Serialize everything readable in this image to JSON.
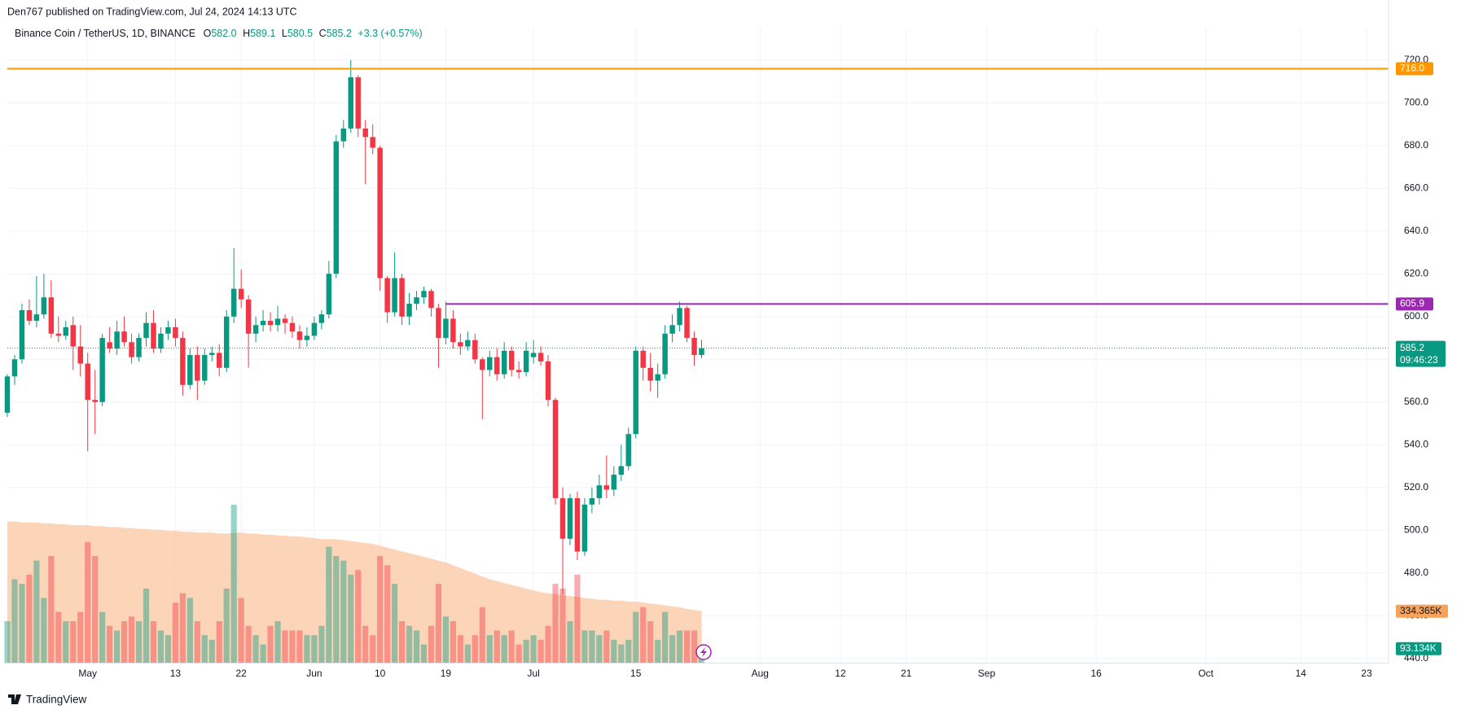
{
  "header": {
    "publisher": "Den767 published on TradingView.com, Jul 24, 2024 14:13 UTC",
    "brand": "TradingView"
  },
  "chart_data": {
    "type": "candlestick",
    "symbol": "Binance Coin / TetherUS, 1D, BINANCE",
    "legend_keys": {
      "open": "O",
      "high": "H",
      "low": "L",
      "close": "C"
    },
    "last_labels": {
      "open": "582.0",
      "high": "589.1",
      "low": "580.5",
      "close": "585.2",
      "change": "+3.3 (+0.57%)"
    },
    "countdown": "09:46:23",
    "x": [
      "2024-04-20",
      "2024-04-21",
      "2024-04-22",
      "2024-04-23",
      "2024-04-24",
      "2024-04-25",
      "2024-04-26",
      "2024-04-27",
      "2024-04-28",
      "2024-04-29",
      "2024-04-30",
      "2024-05-01",
      "2024-05-02",
      "2024-05-03",
      "2024-05-04",
      "2024-05-05",
      "2024-05-06",
      "2024-05-07",
      "2024-05-08",
      "2024-05-09",
      "2024-05-10",
      "2024-05-11",
      "2024-05-12",
      "2024-05-13",
      "2024-05-14",
      "2024-05-15",
      "2024-05-16",
      "2024-05-17",
      "2024-05-18",
      "2024-05-19",
      "2024-05-20",
      "2024-05-21",
      "2024-05-22",
      "2024-05-23",
      "2024-05-24",
      "2024-05-25",
      "2024-05-26",
      "2024-05-27",
      "2024-05-28",
      "2024-05-29",
      "2024-05-30",
      "2024-05-31",
      "2024-06-01",
      "2024-06-02",
      "2024-06-03",
      "2024-06-04",
      "2024-06-05",
      "2024-06-06",
      "2024-06-07",
      "2024-06-08",
      "2024-06-09",
      "2024-06-10",
      "2024-06-11",
      "2024-06-12",
      "2024-06-13",
      "2024-06-14",
      "2024-06-15",
      "2024-06-16",
      "2024-06-17",
      "2024-06-18",
      "2024-06-19",
      "2024-06-20",
      "2024-06-21",
      "2024-06-22",
      "2024-06-23",
      "2024-06-24",
      "2024-06-25",
      "2024-06-26",
      "2024-06-27",
      "2024-06-28",
      "2024-06-29",
      "2024-06-30",
      "2024-07-01",
      "2024-07-02",
      "2024-07-03",
      "2024-07-04",
      "2024-07-05",
      "2024-07-06",
      "2024-07-07",
      "2024-07-08",
      "2024-07-09",
      "2024-07-10",
      "2024-07-11",
      "2024-07-12",
      "2024-07-13",
      "2024-07-14",
      "2024-07-15",
      "2024-07-16",
      "2024-07-17",
      "2024-07-18",
      "2024-07-19",
      "2024-07-20",
      "2024-07-21",
      "2024-07-22",
      "2024-07-23",
      "2024-07-24"
    ],
    "open": [
      555,
      572,
      580,
      603,
      598,
      601,
      609,
      592,
      591,
      596,
      586,
      578,
      561,
      560,
      588,
      585,
      593,
      588,
      581,
      590,
      597,
      585,
      592,
      595,
      590,
      568,
      582,
      570,
      582,
      583,
      576,
      600,
      613,
      608,
      592,
      596,
      598,
      596,
      599,
      597,
      593,
      589,
      591,
      597,
      601,
      620,
      682,
      688,
      712,
      688,
      684,
      679,
      618,
      602,
      618,
      600,
      606,
      609,
      612,
      604,
      590,
      599,
      588,
      586,
      589,
      580,
      575,
      581,
      573,
      584,
      575,
      574,
      581,
      583,
      579,
      561,
      515,
      496,
      515,
      490,
      512,
      515,
      521,
      519,
      526,
      530,
      545,
      584,
      576,
      570,
      573,
      592,
      596,
      604,
      590,
      582.0
    ],
    "high": [
      573,
      582,
      606,
      608,
      619,
      620,
      617,
      600,
      598,
      600,
      596,
      583,
      575,
      592,
      595,
      598,
      600,
      592,
      592,
      602,
      603,
      595,
      598,
      599,
      593,
      585,
      586,
      585,
      586,
      587,
      603,
      632,
      622,
      610,
      600,
      603,
      602,
      605,
      601,
      600,
      596,
      595,
      600,
      603,
      626,
      685,
      692,
      720,
      713,
      692,
      690,
      680,
      619,
      630,
      620,
      611,
      612,
      614,
      613,
      606,
      607,
      603,
      592,
      593,
      592,
      581,
      584,
      585,
      588,
      586,
      579,
      588,
      589,
      586,
      582,
      562,
      520,
      517,
      518,
      515,
      520,
      526,
      535,
      530,
      540,
      548,
      586,
      586,
      583,
      578,
      596,
      601,
      607,
      605,
      593,
      589.1
    ],
    "low": [
      553,
      568,
      578,
      596,
      595,
      599,
      590,
      588,
      589,
      575,
      572,
      537,
      545,
      558,
      583,
      582,
      586,
      578,
      579,
      586,
      583,
      583,
      589,
      586,
      563,
      566,
      561,
      568,
      579,
      572,
      574,
      597,
      604,
      576,
      588,
      593,
      593,
      593,
      592,
      590,
      585,
      586,
      589,
      594,
      599,
      618,
      679,
      686,
      684,
      662,
      676,
      612,
      597,
      600,
      596,
      596,
      603,
      606,
      600,
      576,
      587,
      585,
      582,
      584,
      578,
      552,
      572,
      570,
      571,
      572,
      571,
      572,
      578,
      577,
      558,
      512,
      470,
      493,
      486,
      488,
      508,
      512,
      515,
      516,
      523,
      528,
      543,
      570,
      565,
      562,
      571,
      588,
      593,
      588,
      577,
      580.5
    ],
    "close": [
      572,
      580,
      603,
      598,
      601,
      609,
      592,
      591,
      595,
      586,
      578,
      561,
      560,
      590,
      585,
      593,
      588,
      581,
      590,
      597,
      585,
      592,
      595,
      590,
      568,
      582,
      570,
      582,
      583,
      576,
      600,
      613,
      608,
      592,
      596,
      598,
      596,
      599,
      597,
      593,
      589,
      591,
      597,
      601,
      620,
      682,
      688,
      712,
      688,
      684,
      679,
      618,
      602,
      618,
      600,
      606,
      609,
      612,
      604,
      590,
      599,
      588,
      586,
      589,
      580,
      575,
      581,
      573,
      584,
      575,
      574,
      584,
      583,
      579,
      561,
      515,
      496,
      515,
      490,
      512,
      515,
      521,
      519,
      526,
      530,
      545,
      584,
      576,
      570,
      573,
      592,
      596,
      604,
      590,
      582,
      585.2
    ],
    "up_color": "#089981",
    "down_color": "#f23645",
    "xlim": [
      "2024-04-20",
      "2024-10-26"
    ],
    "xticks": [
      {
        "value": "2024-05-01",
        "label": "May"
      },
      {
        "value": "2024-05-13",
        "label": "13"
      },
      {
        "value": "2024-05-22",
        "label": "22"
      },
      {
        "value": "2024-06-01",
        "label": "Jun"
      },
      {
        "value": "2024-06-10",
        "label": "10"
      },
      {
        "value": "2024-06-19",
        "label": "19"
      },
      {
        "value": "2024-07-01",
        "label": "Jul"
      },
      {
        "value": "2024-07-15",
        "label": "15"
      },
      {
        "value": "2024-08-01",
        "label": "Aug"
      },
      {
        "value": "2024-08-12",
        "label": "12"
      },
      {
        "value": "2024-08-21",
        "label": "21"
      },
      {
        "value": "2024-09-01",
        "label": "Sep"
      },
      {
        "value": "2024-09-16",
        "label": "16"
      },
      {
        "value": "2024-10-01",
        "label": "Oct"
      },
      {
        "value": "2024-10-14",
        "label": "14"
      },
      {
        "value": "2024-10-23",
        "label": "23"
      }
    ],
    "ylim": [
      437.8,
      735.2
    ],
    "yticks": [
      {
        "value": 440,
        "label": "440.0"
      },
      {
        "value": 460,
        "label": "460.0"
      },
      {
        "value": 480,
        "label": "480.0"
      },
      {
        "value": 500,
        "label": "500.0"
      },
      {
        "value": 520,
        "label": "520.0"
      },
      {
        "value": 540,
        "label": "540.0"
      },
      {
        "value": 560,
        "label": "560.0"
      },
      {
        "value": 580,
        "label": "580.0"
      },
      {
        "value": 600,
        "label": "600.0"
      },
      {
        "value": 620,
        "label": "620.0"
      },
      {
        "value": 640,
        "label": "640.0"
      },
      {
        "value": 660,
        "label": "660.0"
      },
      {
        "value": 680,
        "label": "680.0"
      },
      {
        "value": 700,
        "label": "700.0"
      },
      {
        "value": 720,
        "label": "720.0"
      }
    ],
    "grid": true,
    "levels": [
      {
        "value": 716,
        "label": "716.0",
        "color": "#ff9800",
        "from": "2024-04-20"
      },
      {
        "value": 605.9,
        "label": "605.9",
        "color": "#9c27b0",
        "from": "2024-06-19"
      }
    ],
    "volume": {
      "values": [
        270,
        540,
        510,
        570,
        660,
        420,
        690,
        330,
        270,
        270,
        330,
        780,
        690,
        330,
        240,
        210,
        270,
        300,
        270,
        480,
        270,
        210,
        180,
        390,
        450,
        420,
        270,
        180,
        150,
        270,
        480,
        1020,
        420,
        240,
        180,
        120,
        240,
        270,
        210,
        210,
        210,
        180,
        180,
        240,
        750,
        690,
        660,
        570,
        600,
        240,
        180,
        690,
        630,
        510,
        270,
        240,
        210,
        120,
        240,
        510,
        300,
        270,
        180,
        120,
        180,
        360,
        180,
        210,
        180,
        210,
        120,
        150,
        180,
        150,
        240,
        510,
        480,
        270,
        570,
        210,
        210,
        180,
        210,
        150,
        120,
        150,
        330,
        360,
        270,
        150,
        330,
        180,
        210,
        210,
        210,
        93.134
      ],
      "ma": [
        912,
        912,
        906,
        906,
        906,
        900,
        900,
        894,
        894,
        888,
        888,
        888,
        882,
        882,
        876,
        876,
        870,
        870,
        864,
        864,
        858,
        858,
        852,
        852,
        846,
        846,
        840,
        840,
        840,
        834,
        834,
        840,
        840,
        834,
        834,
        828,
        828,
        822,
        822,
        816,
        816,
        810,
        804,
        798,
        798,
        798,
        792,
        786,
        780,
        774,
        768,
        756,
        744,
        732,
        720,
        708,
        696,
        684,
        672,
        660,
        648,
        630,
        612,
        594,
        576,
        558,
        540,
        528,
        516,
        504,
        492,
        480,
        468,
        456,
        450,
        444,
        438,
        432,
        426,
        420,
        414,
        408,
        408,
        402,
        402,
        396,
        396,
        390,
        384,
        378,
        372,
        366,
        360,
        348,
        342,
        334.365
      ],
      "vlim": [
        0,
        4092
      ],
      "last_label": "93.134K",
      "ma_last_label": "334.365K",
      "up_color": "rgba(8,153,129,0.42)",
      "down_color": "rgba(242,54,69,0.42)",
      "ma_color": "#fccdaa",
      "ma_label_color": "#f7a35c"
    }
  }
}
